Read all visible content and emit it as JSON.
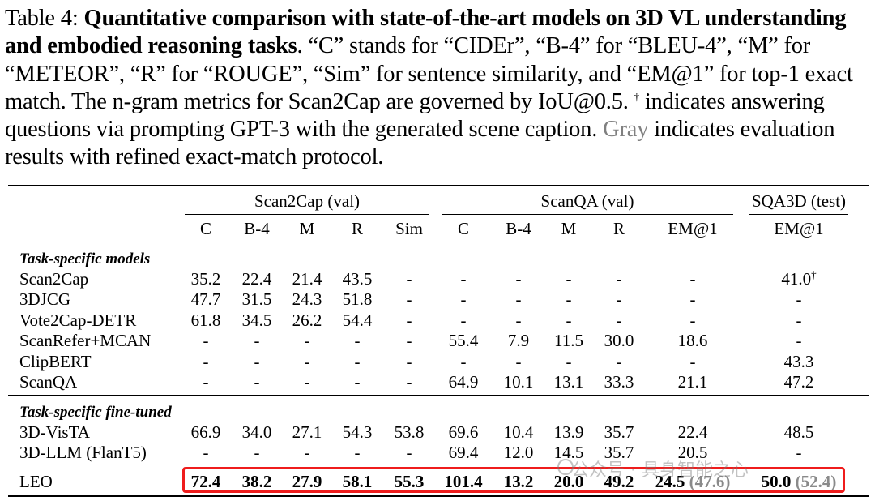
{
  "caption": {
    "label": "Table 4:",
    "title": "Quantitative comparison with state-of-the-art models on 3D VL understanding and embodied reasoning tasks",
    "body1": ". “C” stands for “CIDEr”, “B-4” for “BLEU-4”, “M” for “METEOR”, “R” for “ROUGE”, “Sim” for sentence similarity, and “EM@1” for top-1 exact match. The n-gram metrics for Scan2Cap are governed by IoU@0.5. ",
    "dagger": "†",
    "body2": " indicates answering questions via prompting GPT-3 with the generated scene caption. ",
    "gray_word": "Gray",
    "body3": " indicates evaluation results with refined exact-match protocol."
  },
  "table": {
    "groups": [
      "Scan2Cap (val)",
      "ScanQA (val)",
      "SQA3D (test)"
    ],
    "columns": [
      "C",
      "B-4",
      "M",
      "R",
      "Sim",
      "C",
      "B-4",
      "M",
      "R",
      "EM@1",
      "EM@1"
    ],
    "sections": [
      {
        "title": "Task-specific models",
        "rows": [
          {
            "name": "Scan2Cap",
            "cells": [
              "35.2",
              "22.4",
              "21.4",
              "43.5",
              "-",
              "-",
              "-",
              "-",
              "-",
              "-",
              "41.0"
            ],
            "sqa_dagger": "†"
          },
          {
            "name": "3DJCG",
            "cells": [
              "47.7",
              "31.5",
              "24.3",
              "51.8",
              "-",
              "-",
              "-",
              "-",
              "-",
              "-",
              "-"
            ]
          },
          {
            "name": "Vote2Cap-DETR",
            "cells": [
              "61.8",
              "34.5",
              "26.2",
              "54.4",
              "-",
              "-",
              "-",
              "-",
              "-",
              "-",
              "-"
            ]
          },
          {
            "name": "ScanRefer+MCAN",
            "cells": [
              "-",
              "-",
              "-",
              "-",
              "-",
              "55.4",
              "7.9",
              "11.5",
              "30.0",
              "18.6",
              "-"
            ]
          },
          {
            "name": "ClipBERT",
            "cells": [
              "-",
              "-",
              "-",
              "-",
              "-",
              "-",
              "-",
              "-",
              "-",
              "-",
              "43.3"
            ]
          },
          {
            "name": "ScanQA",
            "cells": [
              "-",
              "-",
              "-",
              "-",
              "-",
              "64.9",
              "10.1",
              "13.1",
              "33.3",
              "21.1",
              "47.2"
            ]
          }
        ]
      },
      {
        "title": "Task-specific fine-tuned",
        "rows": [
          {
            "name": "3D-VisTA",
            "cells": [
              "66.9",
              "34.0",
              "27.1",
              "54.3",
              "53.8",
              "69.6",
              "10.4",
              "13.9",
              "35.7",
              "22.4",
              "48.5"
            ]
          },
          {
            "name": "3D-LLM (FlanT5)",
            "cells": [
              "-",
              "-",
              "-",
              "-",
              "-",
              "69.4",
              "12.0",
              "14.5",
              "35.7",
              "20.5",
              "-"
            ]
          }
        ]
      }
    ],
    "leo": {
      "name": "LEO",
      "cells": [
        "72.4",
        "38.2",
        "27.9",
        "58.1",
        "55.3",
        "101.4",
        "13.2",
        "20.0",
        "49.2",
        "24.5",
        "50.0"
      ],
      "scanqa_em_refined": "(47.6)",
      "sqa_em_refined": "(52.4)"
    }
  },
  "watermark": "公众号 · 具身智能之心",
  "colors": {
    "highlight": "#ef1c1c",
    "gray": "#808080"
  }
}
